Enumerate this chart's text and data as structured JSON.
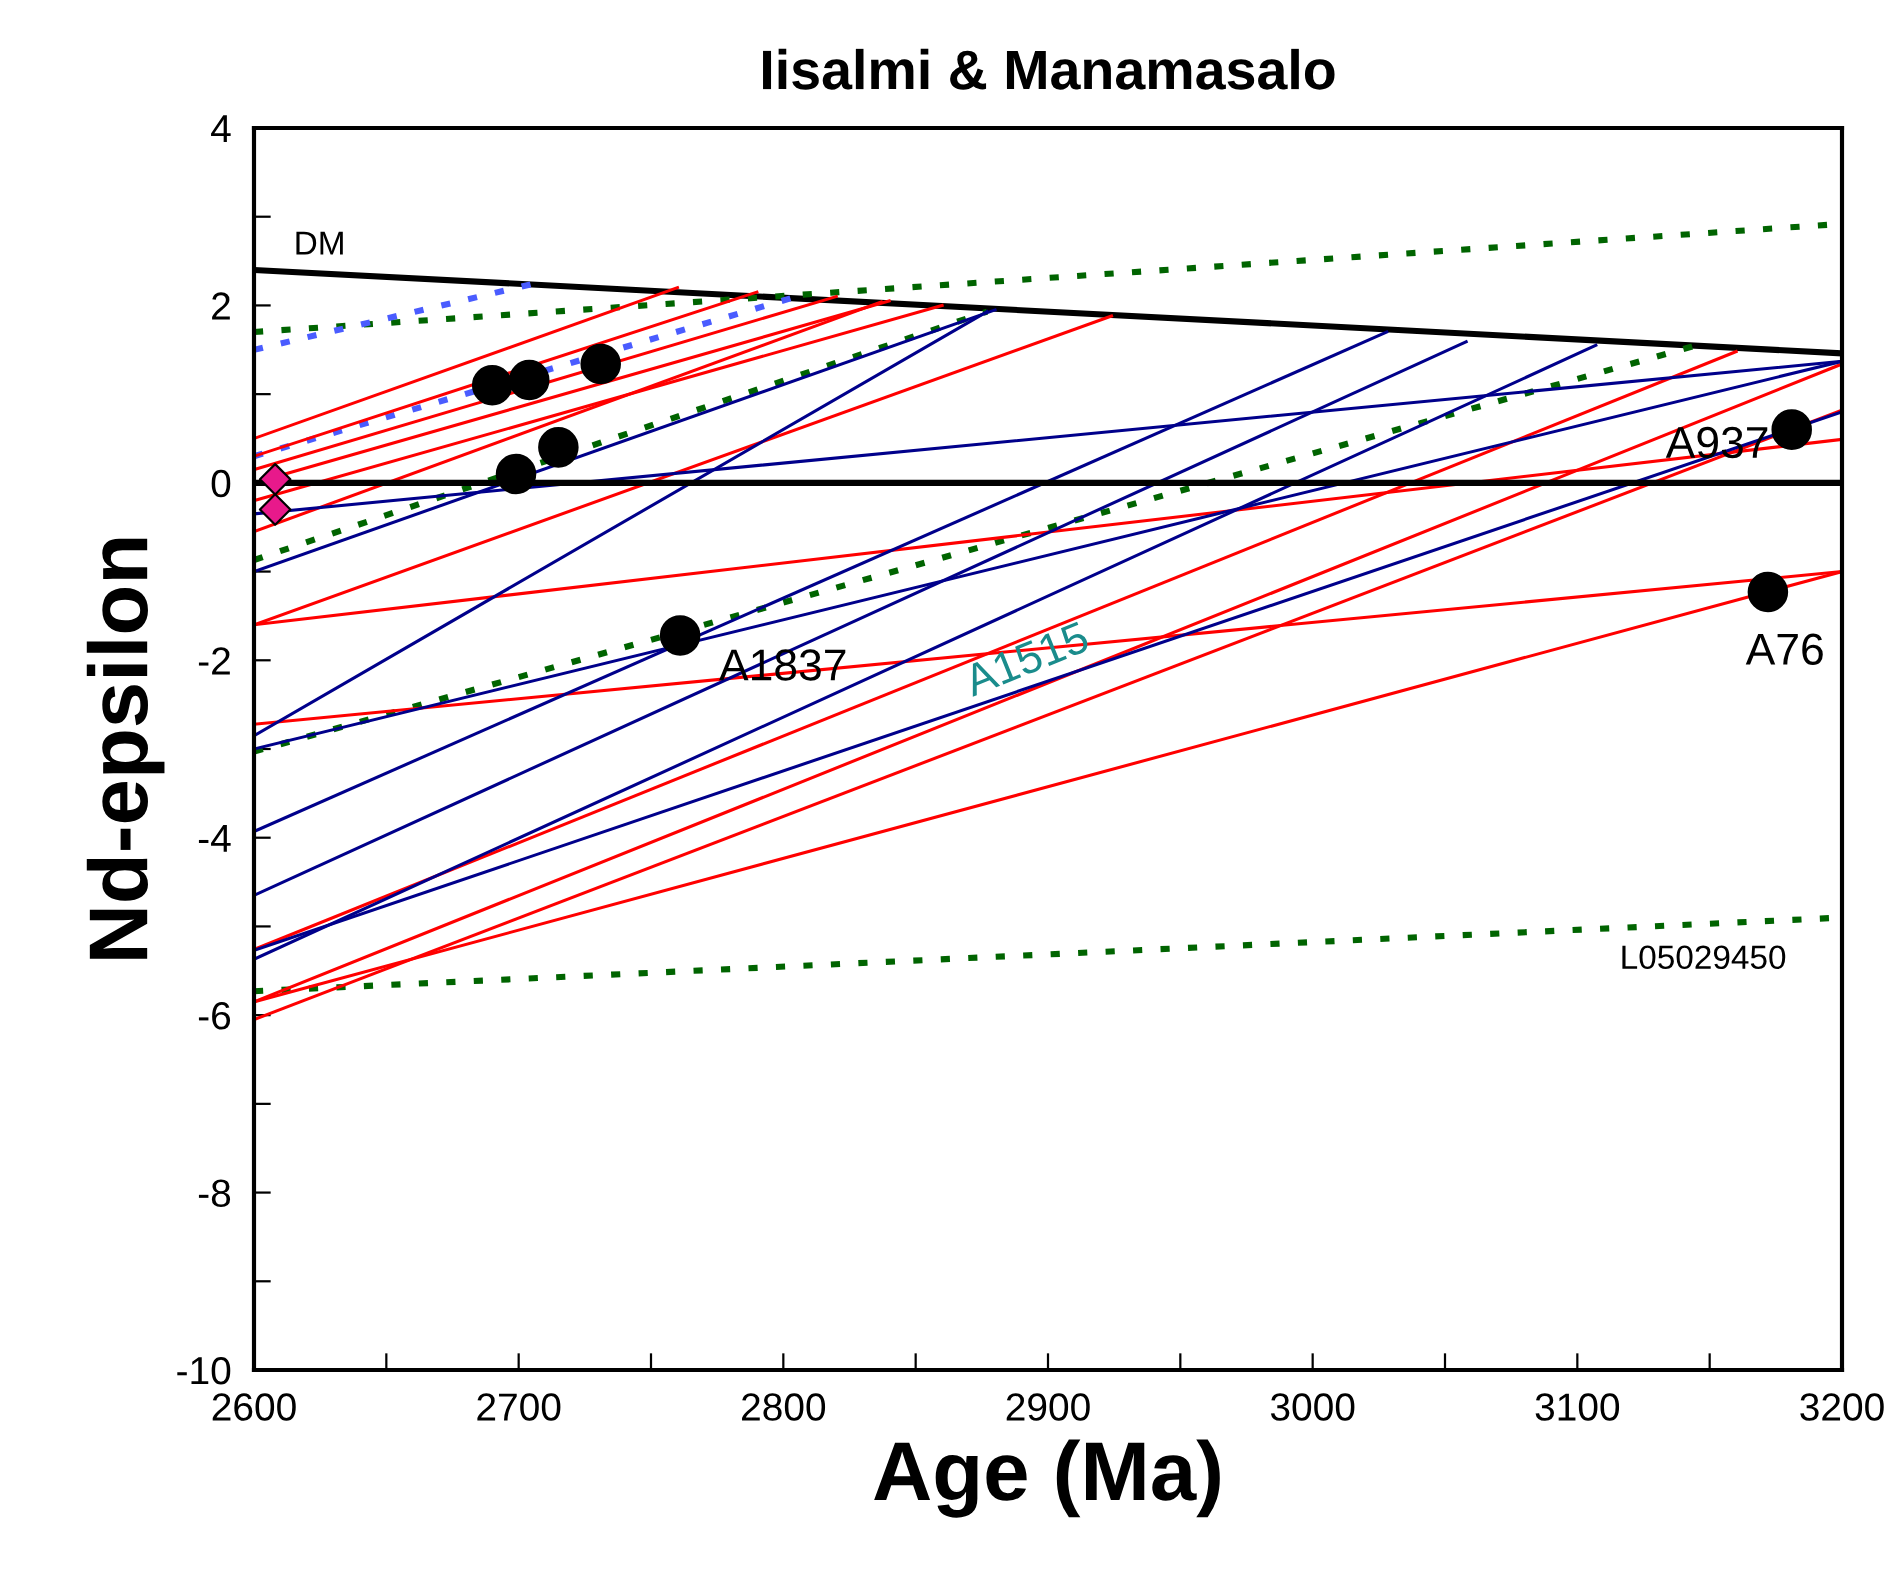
{
  "chart_data": {
    "type": "line",
    "title": "Iisalmi & Manamasalo",
    "xlabel": "Age (Ma)",
    "ylabel": "Nd-epsilon",
    "xlim": [
      2600,
      3200
    ],
    "ylim": [
      -10,
      4
    ],
    "xticks": [
      2600,
      {
        "value": 2650,
        "label": null
      },
      2700,
      {
        "value": 2750,
        "label": null
      },
      2800,
      {
        "value": 2850,
        "label": null
      },
      2900,
      {
        "value": 2950,
        "label": null
      },
      3000,
      {
        "value": 3050,
        "label": null
      },
      3100,
      {
        "value": 3150,
        "label": null
      },
      3200
    ],
    "yticks": [
      -10,
      {
        "value": -9,
        "label": null
      },
      -8,
      {
        "value": -7,
        "label": null
      },
      -6,
      {
        "value": -5,
        "label": null
      },
      -4,
      {
        "value": -3,
        "label": null
      },
      -2,
      {
        "value": -1,
        "label": null
      },
      0,
      {
        "value": 1,
        "label": null
      },
      2,
      {
        "value": 3,
        "label": null
      },
      4
    ],
    "grid": false,
    "legend": false,
    "ref_lines": [
      {
        "axis": "y",
        "value": 0,
        "color": "#000000"
      }
    ],
    "series": [
      {
        "type": "line",
        "color": "#000000",
        "x": [
          2600,
          3200
        ],
        "values": [
          2.4,
          1.46
        ]
      },
      {
        "type": "line",
        "color": "#006400",
        "line_style": "dotted",
        "x": [
          2600,
          3200
        ],
        "values": [
          1.7,
          2.92
        ]
      },
      {
        "type": "line",
        "color": "#006400",
        "line_style": "dotted",
        "x": [
          2600,
          2877
        ],
        "values": [
          -0.87,
          1.93
        ]
      },
      {
        "type": "line",
        "color": "#006400",
        "line_style": "dotted",
        "x": [
          2600,
          3145
        ],
        "values": [
          -3.03,
          1.55
        ]
      },
      {
        "type": "line",
        "color": "#006400",
        "line_style": "dotted",
        "x": [
          2600,
          3200
        ],
        "values": [
          -5.73,
          -4.9
        ]
      },
      {
        "type": "line",
        "color": "#4a5cff",
        "line_style": "dotted",
        "x": [
          2600,
          2705
        ],
        "values": [
          1.5,
          2.24
        ]
      },
      {
        "type": "line",
        "color": "#4a5cff",
        "line_style": "dotted",
        "x": [
          2600,
          2805
        ],
        "values": [
          0.3,
          2.1
        ]
      },
      {
        "type": "line",
        "color": "#ff0000",
        "x": [
          2600,
          2760
        ],
        "values": [
          0.5,
          2.2
        ]
      },
      {
        "type": "line",
        "color": "#ff0000",
        "x": [
          2600,
          2790
        ],
        "values": [
          0.3,
          2.15
        ]
      },
      {
        "type": "line",
        "color": "#ff0000",
        "x": [
          2600,
          2820
        ],
        "values": [
          0.15,
          2.1
        ]
      },
      {
        "type": "line",
        "color": "#ff0000",
        "x": [
          2600,
          2840
        ],
        "values": [
          0.0,
          2.05
        ]
      },
      {
        "type": "line",
        "color": "#ff0000",
        "x": [
          2600,
          2860
        ],
        "values": [
          -0.2,
          2.0
        ]
      },
      {
        "type": "line",
        "color": "#ff0000",
        "x": [
          2600,
          2837
        ],
        "values": [
          -0.55,
          2.04
        ]
      },
      {
        "type": "line",
        "color": "#ff0000",
        "x": [
          2600,
          2924
        ],
        "values": [
          -1.6,
          1.88
        ]
      },
      {
        "type": "line",
        "color": "#ff0000",
        "x": [
          2600,
          3200
        ],
        "values": [
          -1.6,
          0.49
        ]
      },
      {
        "type": "line",
        "color": "#ff0000",
        "x": [
          2600,
          3200
        ],
        "values": [
          -2.72,
          -1.0
        ]
      },
      {
        "type": "line",
        "color": "#ff0000",
        "x": [
          2600,
          3200
        ],
        "values": [
          -5.85,
          -1.0
        ]
      },
      {
        "type": "line",
        "color": "#ff0000",
        "x": [
          2600,
          3160
        ],
        "values": [
          -5.26,
          1.48
        ]
      },
      {
        "type": "line",
        "color": "#ff0000",
        "x": [
          2600,
          3200
        ],
        "values": [
          -5.85,
          1.34
        ]
      },
      {
        "type": "line",
        "color": "#ff0000",
        "x": [
          2600,
          3200
        ],
        "values": [
          -6.05,
          0.82
        ]
      },
      {
        "type": "line",
        "color": "#00008b",
        "x": [
          2600,
          2880
        ],
        "values": [
          -1.0,
          1.95
        ]
      },
      {
        "type": "line",
        "color": "#00008b",
        "x": [
          2600,
          3200
        ],
        "values": [
          -0.35,
          1.37
        ]
      },
      {
        "type": "line",
        "color": "#00008b",
        "x": [
          2600,
          2877
        ],
        "values": [
          -2.85,
          1.93
        ]
      },
      {
        "type": "line",
        "color": "#00008b",
        "x": [
          2600,
          3200
        ],
        "values": [
          -3.0,
          1.37
        ]
      },
      {
        "type": "line",
        "color": "#00008b",
        "x": [
          2600,
          3028
        ],
        "values": [
          -3.93,
          1.7
        ]
      },
      {
        "type": "line",
        "color": "#00008b",
        "x": [
          2600,
          3058
        ],
        "values": [
          -4.65,
          1.59
        ]
      },
      {
        "type": "line",
        "color": "#00008b",
        "x": [
          2600,
          3107
        ],
        "values": [
          -5.37,
          1.55
        ]
      },
      {
        "type": "line",
        "color": "#00008b",
        "x": [
          2600,
          3200
        ],
        "values": [
          -5.27,
          0.8
        ]
      },
      {
        "type": "scatter",
        "color": "#000000",
        "marker": "circle",
        "x": [
          2690,
          2704,
          2731,
          2699,
          2715,
          2761,
          3181,
          3172
        ],
        "values": [
          1.1,
          1.16,
          1.34,
          0.1,
          0.4,
          -1.72,
          0.6,
          -1.23
        ]
      },
      {
        "type": "scatter",
        "color": "#e8198b",
        "marker": "diamond",
        "x": [
          2608,
          2608
        ],
        "values": [
          0.04,
          -0.3
        ]
      }
    ],
    "annotations": [
      "DM",
      {
        "text": "A1837",
        "x": 2761,
        "y": -1.72
      },
      "A1515",
      {
        "text": "A937",
        "x": 3181,
        "y": 0.6
      },
      {
        "text": "A76",
        "x": 3172,
        "y": -1.23
      },
      "L05029450"
    ]
  }
}
